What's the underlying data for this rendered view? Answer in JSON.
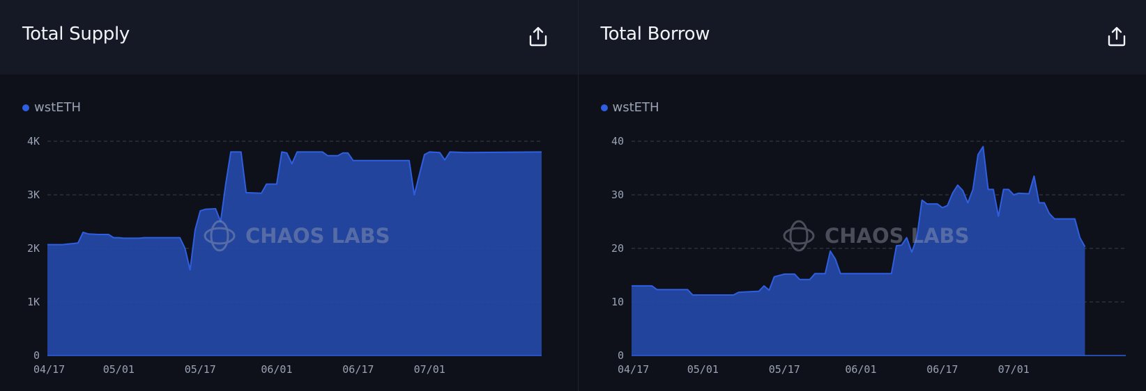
{
  "colors": {
    "series": "#2f5fe0",
    "series_fill": "#2549a8",
    "grid": "#3a4050",
    "axis": "#2f5fe0"
  },
  "panels": [
    {
      "title": "Total Supply",
      "share_icon": "share-icon"
    },
    {
      "title": "Total Borrow",
      "share_icon": "share-icon"
    }
  ],
  "watermark": "CHAOS LABS",
  "chart_data": [
    {
      "type": "area",
      "title": "Total Supply",
      "legend": [
        "wstETH"
      ],
      "legend_position": "top-left",
      "grid": true,
      "x_start": "2024-04-17",
      "x_end": "2024-07-23",
      "x_ticks": [
        "04/17",
        "05/01",
        "05/17",
        "06/01",
        "06/17",
        "07/01"
      ],
      "x_tick_dates": [
        "2024-04-17",
        "2024-05-01",
        "2024-05-17",
        "2024-06-01",
        "2024-06-17",
        "2024-07-01"
      ],
      "y_ticks": [
        "0",
        "1K",
        "2K",
        "3K",
        "4K"
      ],
      "ylim": [
        0,
        4000
      ],
      "series": [
        {
          "name": "wstETH",
          "points": [
            [
              "2024-04-17",
              2070
            ],
            [
              "2024-04-20",
              2070
            ],
            [
              "2024-04-21",
              2080
            ],
            [
              "2024-04-22",
              2090
            ],
            [
              "2024-04-23",
              2100
            ],
            [
              "2024-04-24",
              2300
            ],
            [
              "2024-04-25",
              2270
            ],
            [
              "2024-04-27",
              2260
            ],
            [
              "2024-04-29",
              2260
            ],
            [
              "2024-04-30",
              2200
            ],
            [
              "2024-05-01",
              2200
            ],
            [
              "2024-05-02",
              2190
            ],
            [
              "2024-05-05",
              2190
            ],
            [
              "2024-05-06",
              2200
            ],
            [
              "2024-05-09",
              2200
            ],
            [
              "2024-05-11",
              2200
            ],
            [
              "2024-05-13",
              2200
            ],
            [
              "2024-05-14",
              2000
            ],
            [
              "2024-05-15",
              1600
            ],
            [
              "2024-05-16",
              2350
            ],
            [
              "2024-05-17",
              2700
            ],
            [
              "2024-05-18",
              2730
            ],
            [
              "2024-05-20",
              2740
            ],
            [
              "2024-05-21",
              2500
            ],
            [
              "2024-05-22",
              3200
            ],
            [
              "2024-05-23",
              3800
            ],
            [
              "2024-05-25",
              3800
            ],
            [
              "2024-05-26",
              3040
            ],
            [
              "2024-05-29",
              3030
            ],
            [
              "2024-05-30",
              3200
            ],
            [
              "2024-05-31",
              3200
            ],
            [
              "2024-06-01",
              3200
            ],
            [
              "2024-06-02",
              3800
            ],
            [
              "2024-06-03",
              3780
            ],
            [
              "2024-06-04",
              3580
            ],
            [
              "2024-06-05",
              3800
            ],
            [
              "2024-06-10",
              3800
            ],
            [
              "2024-06-11",
              3730
            ],
            [
              "2024-06-13",
              3730
            ],
            [
              "2024-06-14",
              3780
            ],
            [
              "2024-06-15",
              3780
            ],
            [
              "2024-06-16",
              3640
            ],
            [
              "2024-06-20",
              3640
            ],
            [
              "2024-06-24",
              3640
            ],
            [
              "2024-06-27",
              3640
            ],
            [
              "2024-06-28",
              3000
            ],
            [
              "2024-06-30",
              3750
            ],
            [
              "2024-07-01",
              3800
            ],
            [
              "2024-07-03",
              3790
            ],
            [
              "2024-07-04",
              3650
            ],
            [
              "2024-07-05",
              3800
            ],
            [
              "2024-07-08",
              3790
            ],
            [
              "2024-07-23",
              3800
            ]
          ]
        }
      ]
    },
    {
      "type": "area",
      "title": "Total Borrow",
      "legend": [
        "wstETH"
      ],
      "legend_position": "top-left",
      "grid": true,
      "x_start": "2024-04-17",
      "x_end": "2024-07-23",
      "x_ticks": [
        "04/17",
        "05/01",
        "05/17",
        "06/01",
        "06/17",
        "07/01"
      ],
      "x_tick_dates": [
        "2024-04-17",
        "2024-05-01",
        "2024-05-17",
        "2024-06-01",
        "2024-06-17",
        "2024-07-01"
      ],
      "y_ticks": [
        "0",
        "10",
        "20",
        "30",
        "40"
      ],
      "ylim": [
        0,
        40
      ],
      "series": [
        {
          "name": "wstETH",
          "points": [
            [
              "2024-04-17",
              13
            ],
            [
              "2024-04-21",
              13
            ],
            [
              "2024-04-22",
              12.3
            ],
            [
              "2024-04-28",
              12.3
            ],
            [
              "2024-04-29",
              11.3
            ],
            [
              "2024-05-02",
              11.3
            ],
            [
              "2024-05-07",
              11.3
            ],
            [
              "2024-05-08",
              11.8
            ],
            [
              "2024-05-12",
              12
            ],
            [
              "2024-05-13",
              13
            ],
            [
              "2024-05-14",
              12.2
            ],
            [
              "2024-05-15",
              14.7
            ],
            [
              "2024-05-17",
              15.2
            ],
            [
              "2024-05-19",
              15.2
            ],
            [
              "2024-05-20",
              14.2
            ],
            [
              "2024-05-22",
              14.2
            ],
            [
              "2024-05-23",
              15.3
            ],
            [
              "2024-05-25",
              15.3
            ],
            [
              "2024-05-26",
              19.5
            ],
            [
              "2024-05-27",
              18
            ],
            [
              "2024-05-28",
              15.3
            ],
            [
              "2024-06-03",
              15.3
            ],
            [
              "2024-06-07",
              15.3
            ],
            [
              "2024-06-08",
              20.5
            ],
            [
              "2024-06-09",
              20.6
            ],
            [
              "2024-06-10",
              22
            ],
            [
              "2024-06-11",
              19.3
            ],
            [
              "2024-06-12",
              22
            ],
            [
              "2024-06-13",
              29
            ],
            [
              "2024-06-14",
              28.3
            ],
            [
              "2024-06-16",
              28.3
            ],
            [
              "2024-06-17",
              27.6
            ],
            [
              "2024-06-18",
              28
            ],
            [
              "2024-06-19",
              30.3
            ],
            [
              "2024-06-20",
              31.8
            ],
            [
              "2024-06-21",
              30.8
            ],
            [
              "2024-06-22",
              28.5
            ],
            [
              "2024-06-23",
              31
            ],
            [
              "2024-06-24",
              37.5
            ],
            [
              "2024-06-25",
              39
            ],
            [
              "2024-06-26",
              31
            ],
            [
              "2024-06-27",
              31
            ],
            [
              "2024-06-28",
              26
            ],
            [
              "2024-06-29",
              31
            ],
            [
              "2024-06-30",
              31
            ],
            [
              "2024-07-01",
              30
            ],
            [
              "2024-07-02",
              30.3
            ],
            [
              "2024-07-04",
              30.2
            ],
            [
              "2024-07-05",
              33.5
            ],
            [
              "2024-07-06",
              28.5
            ],
            [
              "2024-07-07",
              28.5
            ],
            [
              "2024-07-08",
              26.5
            ],
            [
              "2024-07-09",
              25.5
            ],
            [
              "2024-07-13",
              25.5
            ],
            [
              "2024-07-14",
              22
            ],
            [
              "2024-07-15",
              20.3
            ]
          ]
        }
      ]
    }
  ]
}
